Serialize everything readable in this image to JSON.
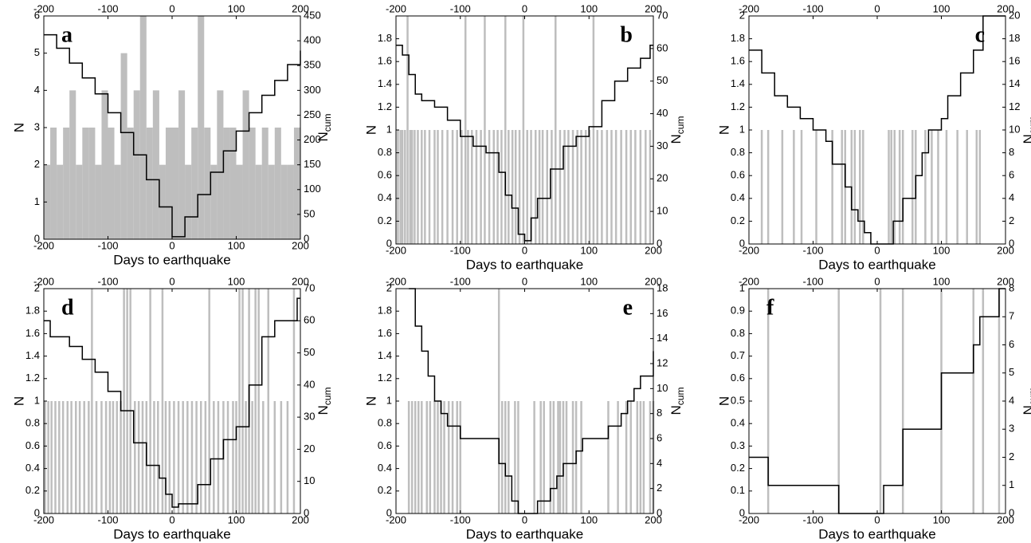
{
  "chart_data": [
    {
      "type": "histogram_line",
      "label": "a",
      "label_corner": "upper left",
      "xlabel": "Days to earthquake",
      "ylabel": "N",
      "y2label": "N",
      "y2label_subscript": "cum",
      "xlim": [
        -200,
        200
      ],
      "xticks": [
        -200,
        -100,
        0,
        100,
        200
      ],
      "x2ticks": [
        -200,
        -100,
        0,
        100,
        200
      ],
      "ylim": [
        0,
        6
      ],
      "yticks": [
        0,
        1,
        2,
        3,
        4,
        5,
        6
      ],
      "y2lim": [
        0,
        450
      ],
      "y2ticks": [
        0,
        50,
        100,
        150,
        200,
        250,
        300,
        350,
        400,
        450
      ],
      "bars": {
        "color": "#bebebe",
        "bins": [
          -200,
          -190,
          -180,
          -170,
          -160,
          -150,
          -140,
          -130,
          -120,
          -110,
          -100,
          -90,
          -80,
          -70,
          -60,
          -50,
          -40,
          -30,
          -20,
          -10,
          0,
          10,
          20,
          30,
          40,
          50,
          60,
          70,
          80,
          90,
          100,
          110,
          120,
          130,
          140,
          150,
          160,
          170,
          180,
          190,
          200
        ],
        "values": [
          2,
          3,
          2,
          3,
          4,
          2,
          3,
          3,
          2,
          4,
          3,
          2,
          5,
          3,
          4,
          6,
          3,
          4,
          2,
          3,
          3,
          4,
          2,
          3,
          6,
          3,
          2,
          4,
          3,
          3,
          2,
          4,
          3,
          2,
          3,
          2,
          3,
          2,
          2,
          3
        ]
      },
      "line": {
        "color": "#000000",
        "step": true,
        "axis": "y2",
        "x": [
          -200,
          -180,
          -160,
          -140,
          -120,
          -100,
          -80,
          -60,
          -40,
          -20,
          0,
          20,
          40,
          60,
          80,
          100,
          120,
          140,
          160,
          180,
          200
        ],
        "values": [
          412,
          385,
          355,
          325,
          293,
          255,
          215,
          170,
          120,
          65,
          5,
          45,
          90,
          135,
          178,
          218,
          255,
          290,
          320,
          352,
          380
        ]
      }
    },
    {
      "type": "event_line",
      "label": "b",
      "label_corner": "upper right",
      "xlabel": "Days to earthquake",
      "ylabel": "N",
      "y2label": "N",
      "y2label_subscript": "cum",
      "xlim": [
        -200,
        200
      ],
      "xticks": [
        -200,
        -100,
        0,
        100,
        200
      ],
      "x2ticks": [
        -200,
        -100,
        0,
        100,
        200
      ],
      "ylim": [
        0,
        2
      ],
      "yticks": [
        0,
        0.2,
        0.4,
        0.6,
        0.8,
        1,
        1.2,
        1.4,
        1.6,
        1.8
      ],
      "y2lim": [
        0,
        70
      ],
      "y2ticks": [
        0,
        10,
        20,
        30,
        40,
        50,
        60,
        70
      ],
      "bars": {
        "color": "#bebebe",
        "x": [
          -197,
          -193,
          -190,
          -186,
          -182,
          -178,
          -175,
          -171,
          -166,
          -160,
          -155,
          -148,
          -140,
          -135,
          -128,
          -120,
          -112,
          -105,
          -98,
          -92,
          -88,
          -82,
          -75,
          -68,
          -62,
          -55,
          -48,
          -42,
          -36,
          -30,
          -25,
          -19,
          -14,
          -8,
          -2,
          4,
          10,
          17,
          23,
          28,
          35,
          42,
          48,
          55,
          62,
          68,
          75,
          82,
          88,
          95,
          101,
          107,
          113,
          120,
          128,
          135,
          142,
          150,
          158,
          165,
          172,
          180,
          188,
          195
        ],
        "values": [
          1,
          1,
          1,
          1,
          2,
          1,
          1,
          1,
          1,
          1,
          1,
          1,
          1,
          1,
          1,
          1,
          1,
          1,
          1,
          2,
          1,
          1,
          1,
          1,
          2,
          1,
          1,
          1,
          1,
          2,
          1,
          1,
          1,
          1,
          2,
          1,
          1,
          1,
          1,
          1,
          1,
          1,
          2,
          1,
          1,
          1,
          1,
          1,
          1,
          1,
          1,
          2,
          1,
          1,
          1,
          1,
          1,
          1,
          1,
          1,
          1,
          1,
          1,
          1
        ]
      },
      "line": {
        "color": "#000000",
        "step": true,
        "axis": "y2",
        "x": [
          -200,
          -190,
          -180,
          -170,
          -160,
          -140,
          -120,
          -100,
          -80,
          -60,
          -40,
          -30,
          -20,
          -10,
          0,
          10,
          20,
          40,
          60,
          80,
          100,
          120,
          140,
          160,
          180,
          195
        ],
        "values": [
          61,
          58,
          52,
          46,
          44,
          42,
          38,
          33,
          30,
          28,
          22,
          15,
          11,
          3,
          1,
          8,
          14,
          23,
          30,
          33,
          36,
          44,
          50,
          54,
          57,
          61
        ]
      }
    },
    {
      "type": "event_line",
      "label": "c",
      "label_corner": "upper right",
      "xlabel": "Days to earthquake",
      "ylabel": "N",
      "y2label": "N",
      "y2label_subscript": "cum",
      "xlim": [
        -200,
        200
      ],
      "xticks": [
        -200,
        -100,
        0,
        100,
        200
      ],
      "x2ticks": [
        -200,
        -100,
        0,
        100,
        200
      ],
      "ylim": [
        0,
        2
      ],
      "yticks": [
        0,
        0.2,
        0.4,
        0.6,
        0.8,
        1,
        1.2,
        1.4,
        1.6,
        1.8,
        2
      ],
      "y2lim": [
        0,
        20
      ],
      "y2ticks": [
        0,
        2,
        4,
        6,
        8,
        10,
        12,
        14,
        16,
        18,
        20
      ],
      "bars": {
        "color": "#bebebe",
        "x": [
          -180,
          -170,
          -148,
          -130,
          -118,
          -95,
          -70,
          -55,
          -50,
          -40,
          -35,
          -27,
          -22,
          18,
          22,
          27,
          35,
          40,
          55,
          60,
          75,
          85,
          95,
          108,
          125,
          140,
          155,
          160
        ],
        "values": [
          1,
          1,
          1,
          1,
          1,
          1,
          1,
          1,
          1,
          1,
          1,
          1,
          1,
          1,
          1,
          1,
          1,
          1,
          1,
          1,
          1,
          1,
          1,
          1,
          1,
          1,
          1,
          1
        ]
      },
      "line": {
        "color": "#000000",
        "step": true,
        "axis": "y2",
        "x": [
          -200,
          -180,
          -160,
          -140,
          -120,
          -100,
          -80,
          -70,
          -50,
          -40,
          -30,
          -20,
          -10,
          20,
          25,
          40,
          60,
          70,
          80,
          100,
          110,
          130,
          150,
          165
        ],
        "values": [
          17,
          15,
          13,
          12,
          11,
          10,
          9,
          7,
          5,
          3,
          2,
          1,
          0,
          0,
          2,
          4,
          6,
          8,
          10,
          11,
          13,
          15,
          17,
          20
        ]
      }
    },
    {
      "type": "event_line",
      "label": "d",
      "label_corner": "upper left",
      "xlabel": "Days to earthquake",
      "ylabel": "N",
      "y2label": "N",
      "y2label_subscript": "cum",
      "xlim": [
        -200,
        200
      ],
      "xticks": [
        -200,
        -100,
        0,
        100,
        200
      ],
      "x2ticks": [
        -200,
        -100,
        0,
        100,
        200
      ],
      "ylim": [
        0,
        2
      ],
      "yticks": [
        0,
        0.2,
        0.4,
        0.6,
        0.8,
        1,
        1.2,
        1.4,
        1.6,
        1.8,
        2
      ],
      "y2lim": [
        0,
        70
      ],
      "y2ticks": [
        0,
        10,
        20,
        30,
        40,
        50,
        60,
        70
      ],
      "bars": {
        "color": "#bebebe",
        "x": [
          -198,
          -193,
          -188,
          -182,
          -176,
          -170,
          -163,
          -157,
          -150,
          -144,
          -137,
          -130,
          -125,
          -118,
          -110,
          -103,
          -97,
          -92,
          -86,
          -80,
          -75,
          -70,
          -65,
          -58,
          -52,
          -46,
          -40,
          -34,
          -28,
          -22,
          -15,
          -10,
          -4,
          3,
          10,
          17,
          24,
          31,
          38,
          45,
          52,
          58,
          65,
          72,
          80,
          87,
          95,
          100,
          105,
          110,
          115,
          120,
          125,
          130,
          135,
          142,
          150,
          160,
          170,
          180,
          190
        ],
        "values": [
          1,
          1,
          1,
          1,
          1,
          1,
          1,
          1,
          1,
          1,
          1,
          1,
          2,
          1,
          1,
          1,
          1,
          1,
          1,
          1,
          2,
          2,
          2,
          1,
          1,
          1,
          1,
          2,
          1,
          1,
          2,
          1,
          1,
          1,
          1,
          1,
          1,
          1,
          1,
          1,
          1,
          2,
          1,
          1,
          1,
          1,
          1,
          1,
          2,
          2,
          1,
          2,
          1,
          2,
          2,
          1,
          2,
          1,
          1,
          1,
          2
        ]
      },
      "line": {
        "color": "#000000",
        "step": true,
        "axis": "y2",
        "x": [
          -200,
          -190,
          -160,
          -140,
          -120,
          -100,
          -80,
          -60,
          -40,
          -20,
          -10,
          0,
          10,
          20,
          40,
          60,
          80,
          100,
          120,
          140,
          160,
          180,
          195
        ],
        "values": [
          60,
          55,
          52,
          48,
          44,
          38,
          32,
          22,
          15,
          11,
          6,
          2,
          3,
          3,
          9,
          17,
          23,
          27,
          40,
          55,
          60,
          60,
          67
        ]
      }
    },
    {
      "type": "event_line",
      "label": "e",
      "label_corner": "upper right",
      "xlabel": "Days to earthquake",
      "ylabel": "N",
      "y2label": "N",
      "y2label_subscript": "cum",
      "xlim": [
        -200,
        200
      ],
      "xticks": [
        -200,
        -100,
        0,
        100,
        200
      ],
      "x2ticks": [
        -200,
        -100,
        0,
        100,
        200
      ],
      "ylim": [
        0,
        2
      ],
      "yticks": [
        0,
        0.2,
        0.4,
        0.6,
        0.8,
        1,
        1.2,
        1.4,
        1.6,
        1.8,
        2
      ],
      "y2lim": [
        0,
        18
      ],
      "y2ticks": [
        0,
        2,
        4,
        6,
        8,
        10,
        12,
        14,
        16,
        18
      ],
      "bars": {
        "color": "#bebebe",
        "x": [
          -180,
          -175,
          -170,
          -165,
          -160,
          -152,
          -147,
          -140,
          -135,
          -130,
          -125,
          -118,
          -112,
          -105,
          -100,
          -40,
          -35,
          -30,
          -25,
          -15,
          -10,
          15,
          25,
          30,
          40,
          45,
          52,
          55,
          60,
          65,
          75,
          80,
          88,
          130,
          145,
          158,
          165,
          175,
          180,
          185,
          195,
          200
        ],
        "values": [
          1,
          1,
          1,
          1,
          1,
          1,
          1,
          1,
          1,
          1,
          1,
          1,
          1,
          1,
          1,
          2,
          1,
          1,
          1,
          1,
          1,
          1,
          1,
          1,
          1,
          1,
          1,
          1,
          1,
          1,
          1,
          1,
          1,
          1,
          1,
          1,
          1,
          1,
          1,
          1,
          1,
          1
        ]
      },
      "line": {
        "color": "#000000",
        "step": true,
        "axis": "y2",
        "x": [
          -180,
          -170,
          -160,
          -150,
          -140,
          -130,
          -120,
          -100,
          -40,
          -30,
          -20,
          -10,
          10,
          20,
          40,
          50,
          60,
          80,
          90,
          130,
          150,
          160,
          170,
          180,
          200
        ],
        "values": [
          18,
          15,
          13,
          11,
          9,
          8,
          7,
          6,
          4,
          3,
          1,
          0,
          0,
          1,
          2,
          3,
          4,
          5,
          6,
          7,
          8,
          9,
          10,
          11,
          13
        ]
      }
    },
    {
      "type": "event_line",
      "label": "f",
      "label_corner": "upper left",
      "xlabel": "Days to earthquake",
      "ylabel": "N",
      "y2label": "N",
      "y2label_subscript": "cum",
      "xlim": [
        -200,
        200
      ],
      "xticks": [
        -200,
        -100,
        0,
        100,
        200
      ],
      "x2ticks": [
        -200,
        -100,
        0,
        100,
        200
      ],
      "ylim": [
        0,
        1
      ],
      "yticks": [
        0,
        0.1,
        0.2,
        0.3,
        0.4,
        0.5,
        0.6,
        0.7,
        0.8,
        0.9,
        1
      ],
      "y2lim": [
        0,
        8
      ],
      "y2ticks": [
        0,
        1,
        2,
        3,
        4,
        5,
        6,
        7,
        8
      ],
      "bars": {
        "color": "#bebebe",
        "x": [
          -170,
          -60,
          5,
          40,
          100,
          150,
          165,
          190
        ],
        "values": [
          1,
          1,
          1,
          1,
          1,
          1,
          1,
          1
        ]
      },
      "line": {
        "color": "#000000",
        "step": true,
        "axis": "y2",
        "x": [
          -200,
          -170,
          -60,
          0,
          10,
          40,
          100,
          150,
          160,
          190
        ],
        "values": [
          2,
          1,
          0,
          0,
          1,
          3,
          5,
          6,
          7,
          8
        ]
      }
    }
  ]
}
